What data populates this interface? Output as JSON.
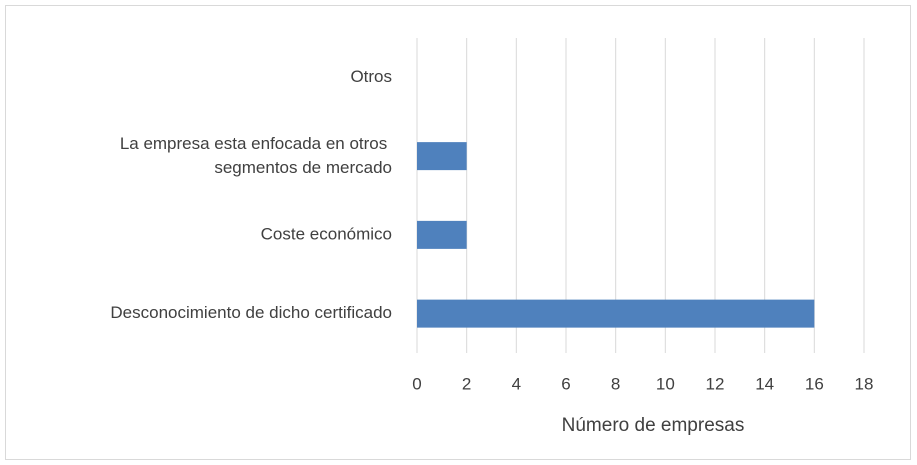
{
  "chart_data": {
    "type": "hbar",
    "categories": [
      "Otros",
      "La empresa esta enfocada en otros segmentos de mercado",
      "Coste económico",
      "Desconocimiento de dicho certificado"
    ],
    "values": [
      0,
      2,
      2,
      16
    ],
    "color": "#4f81bd",
    "x_label": "Número de empresas",
    "xlim": [
      0,
      18
    ],
    "xticks": [
      0,
      2,
      4,
      6,
      8,
      10,
      12,
      14,
      16,
      18
    ],
    "grid": true
  }
}
